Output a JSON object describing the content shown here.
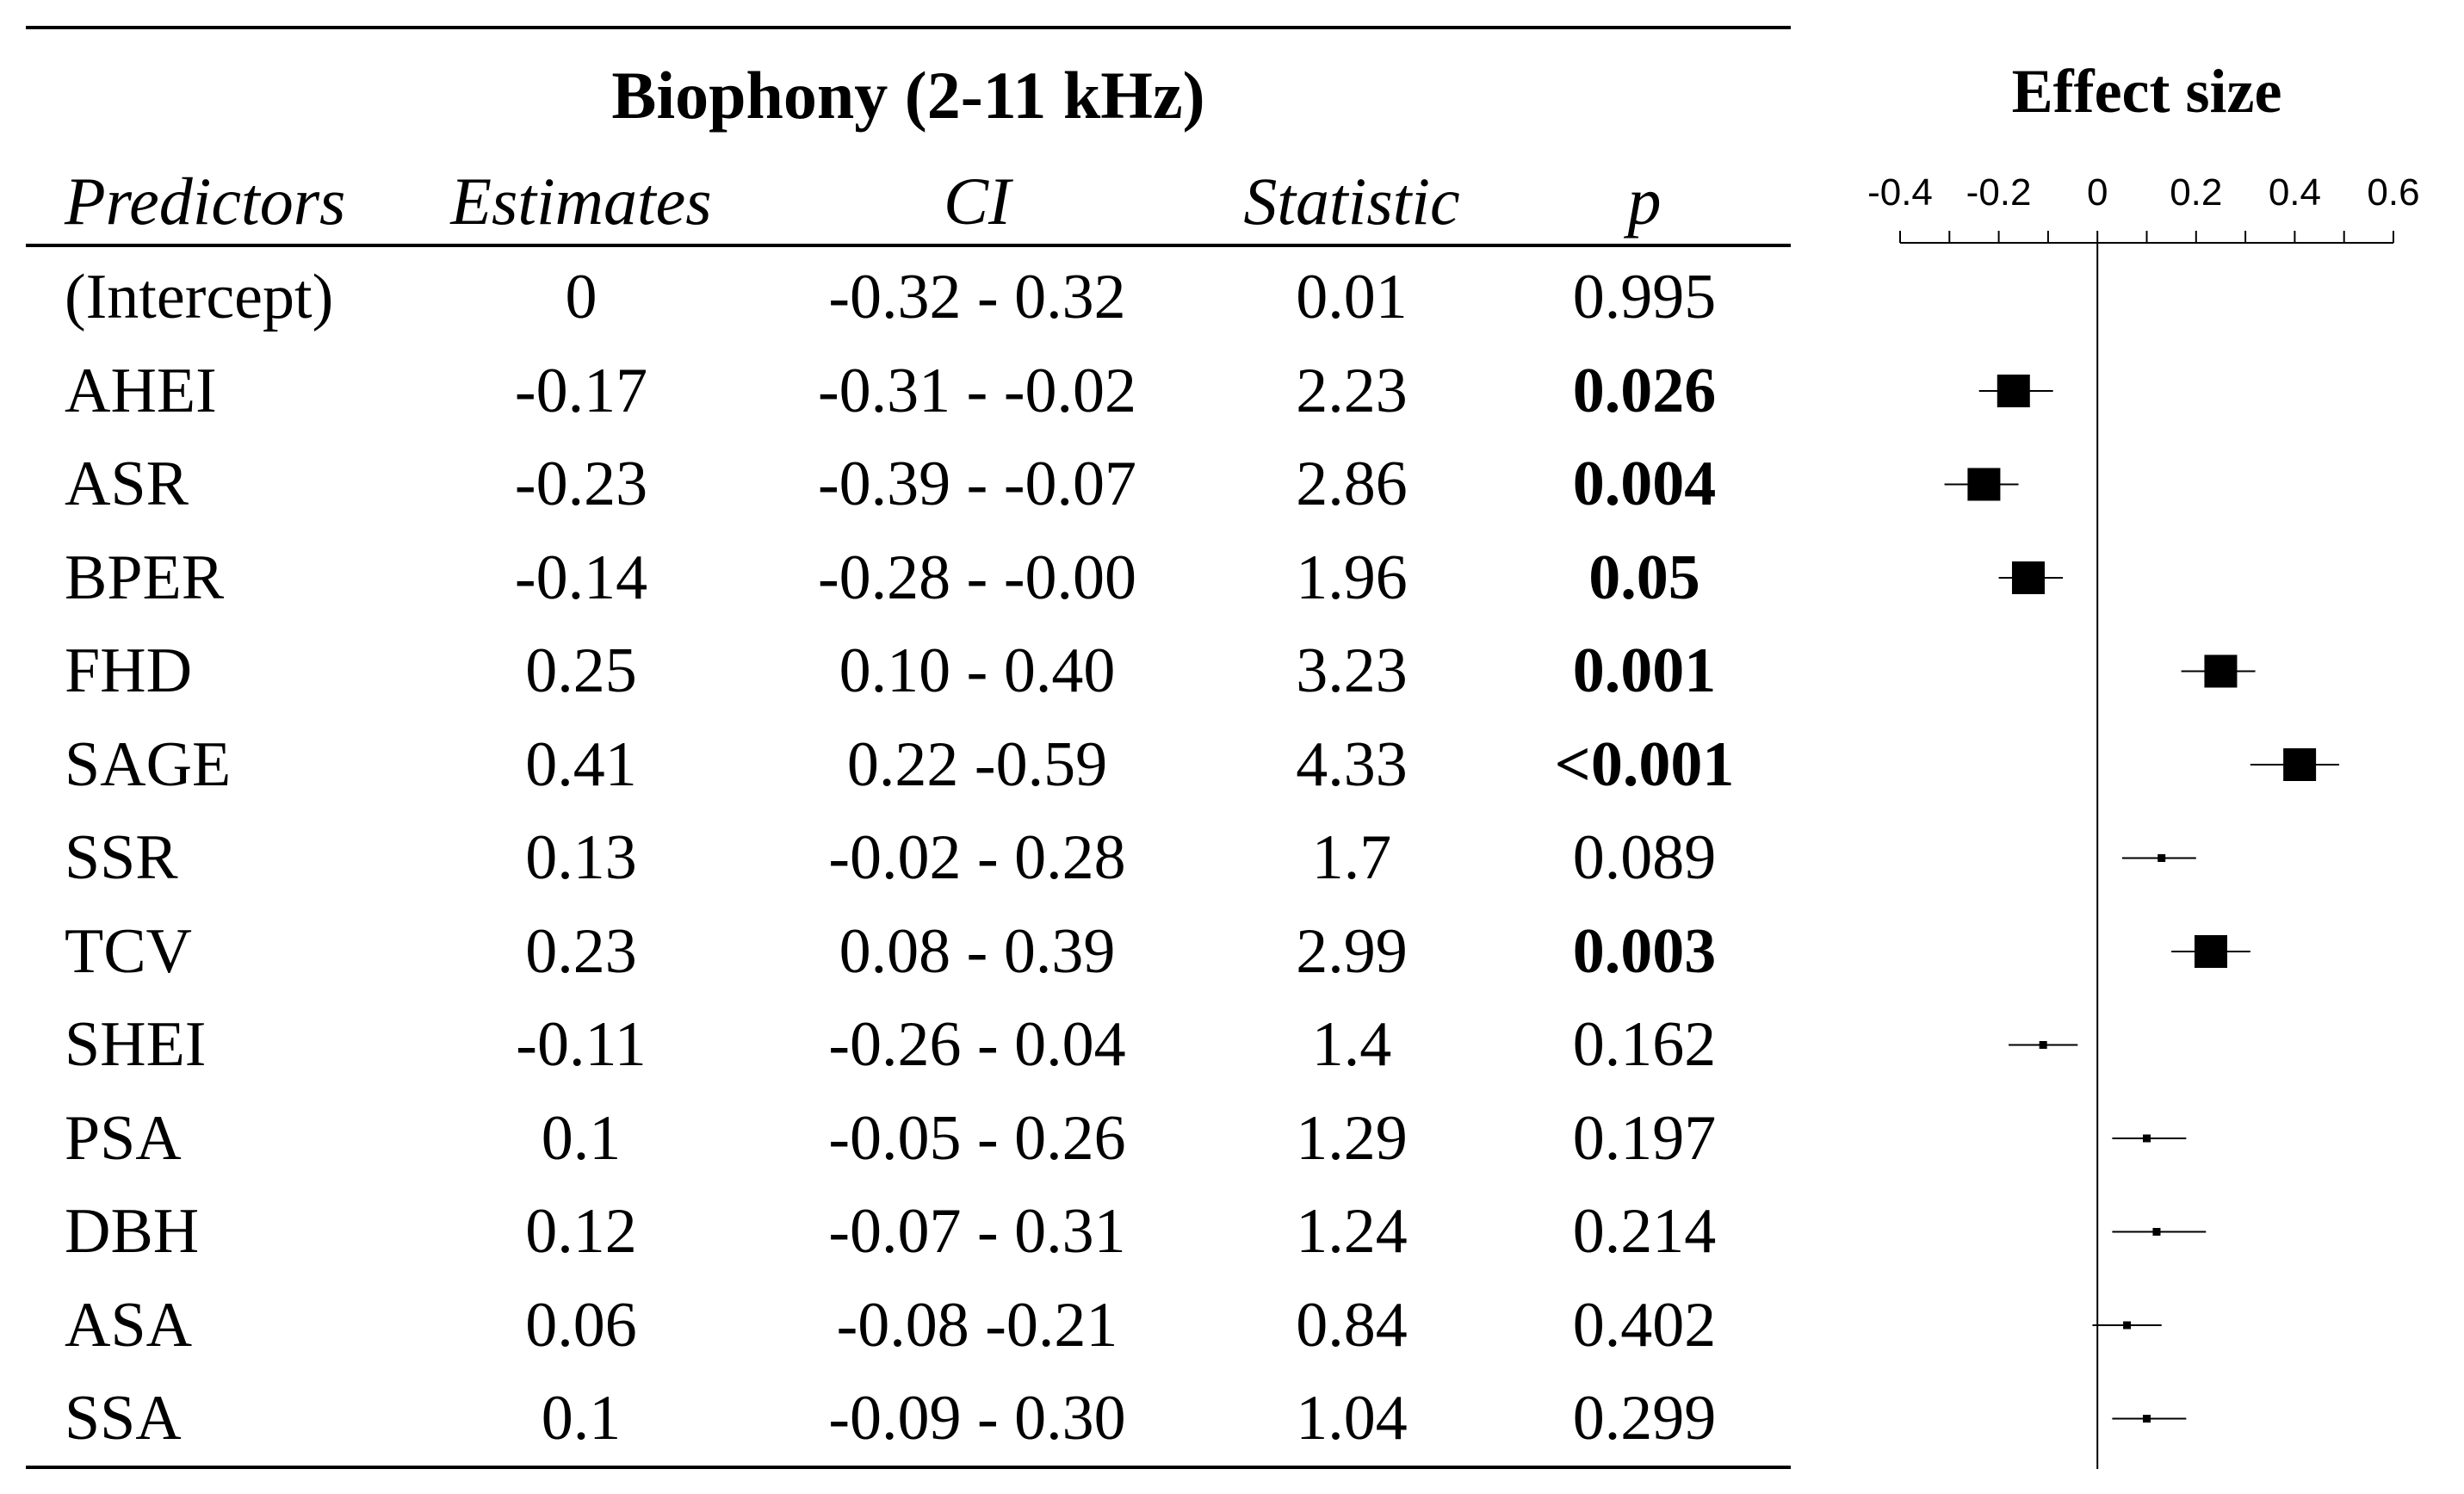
{
  "table": {
    "title": "Biophony (2-11 kHz)",
    "headers": {
      "predictors": "Predictors",
      "estimates": "Estimates",
      "ci": "CI",
      "statistic": "Statistic",
      "p": "p"
    },
    "rows": [
      {
        "predictor": "(Intercept)",
        "estimate": "0",
        "ci": "-0.32 - 0.32",
        "statistic": "0.01",
        "p": "0.995"
      },
      {
        "predictor": "AHEI",
        "estimate": "-0.17",
        "ci": "-0.31 - -0.02",
        "statistic": "2.23",
        "p": "0.026"
      },
      {
        "predictor": "ASR",
        "estimate": "-0.23",
        "ci": "-0.39 - -0.07",
        "statistic": "2.86",
        "p": "0.004"
      },
      {
        "predictor": "BPER",
        "estimate": "-0.14",
        "ci": "-0.28 - -0.00",
        "statistic": "1.96",
        "p": "0.05"
      },
      {
        "predictor": "FHD",
        "estimate": "0.25",
        "ci": "0.10 - 0.40",
        "statistic": "3.23",
        "p": "0.001"
      },
      {
        "predictor": "SAGE",
        "estimate": "0.41",
        "ci": "0.22 -0.59",
        "statistic": "4.33",
        "p": "<0.001"
      },
      {
        "predictor": "SSR",
        "estimate": "0.13",
        "ci": "-0.02 - 0.28",
        "statistic": "1.7",
        "p": "0.089"
      },
      {
        "predictor": "TCV",
        "estimate": "0.23",
        "ci": "0.08 - 0.39",
        "statistic": "2.99",
        "p": "0.003"
      },
      {
        "predictor": "SHEI",
        "estimate": "-0.11",
        "ci": "-0.26 - 0.04",
        "statistic": "1.4",
        "p": "0.162"
      },
      {
        "predictor": "PSA",
        "estimate": "0.1",
        "ci": "-0.05 - 0.26",
        "statistic": "1.29",
        "p": "0.197"
      },
      {
        "predictor": "DBH",
        "estimate": "0.12",
        "ci": "-0.07 - 0.31",
        "statistic": "1.24",
        "p": "0.214"
      },
      {
        "predictor": "ASA",
        "estimate": "0.06",
        "ci": "-0.08 -0.21",
        "statistic": "0.84",
        "p": "0.402"
      },
      {
        "predictor": "SSA",
        "estimate": "0.1",
        "ci": "-0.09 - 0.30",
        "statistic": "1.04",
        "p": "0.299"
      }
    ],
    "significant_rows": [
      1,
      2,
      3,
      4,
      5,
      7
    ]
  },
  "chart_data": {
    "type": "scatter",
    "subtype": "forest-plot",
    "title": "Effect size",
    "xlabel": "",
    "ylabel": "",
    "xlim": [
      -0.4,
      0.6
    ],
    "xticks": [
      -0.4,
      -0.2,
      0,
      0.2,
      0.4,
      0.6
    ],
    "xtick_labels": [
      "-0.4",
      "-0.2",
      "0",
      "0.2",
      "0.4",
      "0.6"
    ],
    "axis_position": "top",
    "reference_line": 0,
    "categories": [
      "AHEI",
      "ASR",
      "BPER",
      "FHD",
      "SAGE",
      "SSR",
      "TCV",
      "SHEI",
      "PSA",
      "DBH",
      "ASA",
      "SSA"
    ],
    "estimates": [
      -0.17,
      -0.23,
      -0.14,
      0.25,
      0.41,
      0.13,
      0.23,
      -0.11,
      0.1,
      0.12,
      0.06,
      0.1
    ],
    "ci_low": [
      -0.24,
      -0.31,
      -0.2,
      0.17,
      0.31,
      0.05,
      0.15,
      -0.18,
      0.03,
      0.03,
      -0.01,
      0.03
    ],
    "ci_high": [
      -0.09,
      -0.16,
      -0.07,
      0.32,
      0.49,
      0.2,
      0.31,
      -0.04,
      0.18,
      0.22,
      0.13,
      0.18
    ],
    "significant": [
      true,
      true,
      true,
      true,
      true,
      false,
      true,
      false,
      false,
      false,
      false,
      false
    ],
    "color": "#000000"
  }
}
